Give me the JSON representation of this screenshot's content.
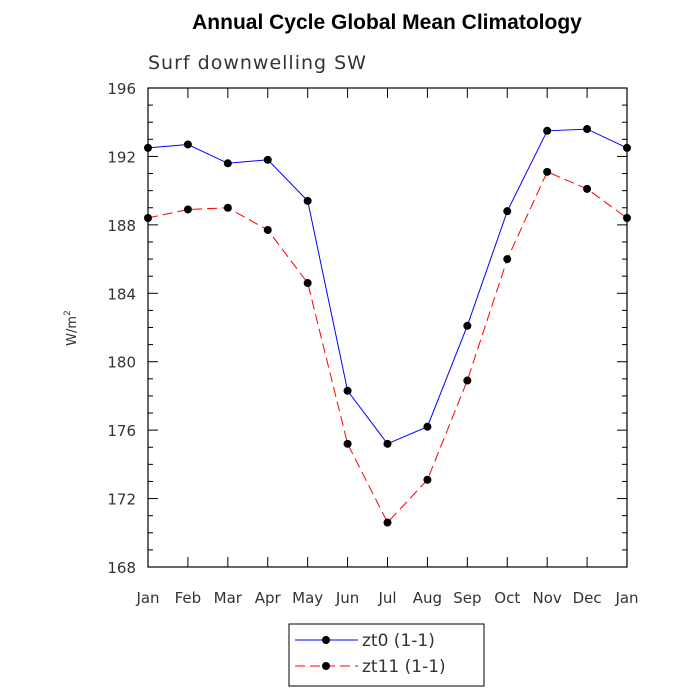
{
  "chart_data": {
    "type": "line",
    "title": "Annual Cycle Global Mean Climatology",
    "subtitle": "Surf downwelling SW",
    "ylabel": "W/m",
    "ylabel_superscript": "2",
    "categories": [
      "Jan",
      "Feb",
      "Mar",
      "Apr",
      "May",
      "Jun",
      "Jul",
      "Aug",
      "Sep",
      "Oct",
      "Nov",
      "Dec",
      "Jan"
    ],
    "ylim": [
      168,
      196
    ],
    "yticks": [
      168,
      172,
      176,
      180,
      184,
      188,
      192,
      196
    ],
    "grid": false,
    "legend_position": "bottom-center",
    "series": [
      {
        "name": "zt0 (1-1)",
        "color": "#0000ff",
        "line_style": "solid",
        "marker": "filled-circle",
        "values": [
          192.5,
          192.7,
          191.6,
          191.8,
          189.4,
          178.3,
          175.2,
          176.2,
          182.1,
          188.8,
          193.5,
          193.6,
          192.5
        ]
      },
      {
        "name": "zt11 (1-1)",
        "color": "#ff0000",
        "line_style": "dashed",
        "marker": "filled-circle",
        "values": [
          188.4,
          188.9,
          189.0,
          187.7,
          184.6,
          175.2,
          170.6,
          173.1,
          178.9,
          186.0,
          191.1,
          190.1,
          188.4
        ]
      }
    ]
  }
}
